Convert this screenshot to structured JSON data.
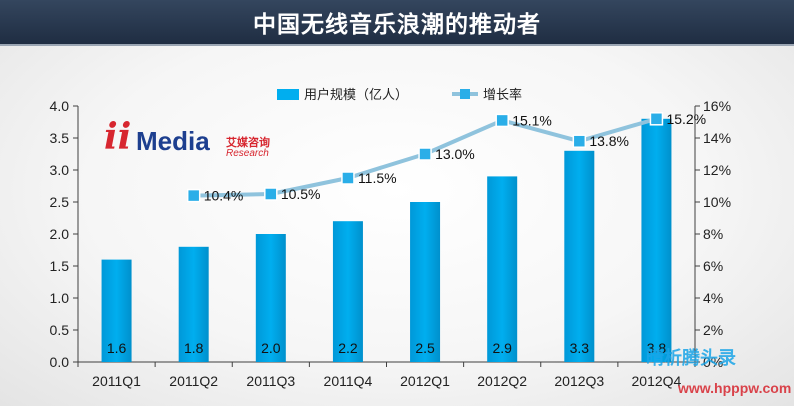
{
  "header": {
    "title": "中国无线音乐浪潮的推动者"
  },
  "logo": {
    "mark": "ii",
    "name": "Media",
    "cn": "艾媒咨询",
    "en": "Research"
  },
  "watermark": {
    "cn": "晴析腾头录",
    "en": "www.hpppw.com"
  },
  "colors": {
    "bar": "#00aeef",
    "line": "#8fc3dd",
    "marker": "#2aaee8",
    "title_bg": "#2a3a52"
  },
  "chart_data": {
    "type": "bar+line",
    "categories": [
      "2011Q1",
      "2011Q2",
      "2011Q3",
      "2011Q4",
      "2012Q1",
      "2012Q2",
      "2012Q3",
      "2012Q4"
    ],
    "series": [
      {
        "name": "用户规模（亿人）",
        "type": "bar",
        "axis": "left",
        "values": [
          1.6,
          1.8,
          2.0,
          2.2,
          2.5,
          2.9,
          3.3,
          3.8
        ],
        "labels": [
          "1.6",
          "1.8",
          "2.0",
          "2.2",
          "2.5",
          "2.9",
          "3.3",
          "3.8"
        ]
      },
      {
        "name": "增长率",
        "type": "line",
        "axis": "right",
        "values": [
          null,
          10.4,
          10.5,
          11.5,
          13.0,
          15.1,
          13.8,
          15.2
        ],
        "labels": [
          "",
          "10.4%",
          "10.5%",
          "11.5%",
          "13.0%",
          "15.1%",
          "13.8%",
          "15.2%"
        ]
      }
    ],
    "y_left": {
      "min": 0,
      "max": 4.0,
      "ticks": [
        "0.0",
        "0.5",
        "1.0",
        "1.5",
        "2.0",
        "2.5",
        "3.0",
        "3.5",
        "4.0"
      ]
    },
    "y_right": {
      "min": 0,
      "max": 16,
      "ticks": [
        "0%",
        "2%",
        "4%",
        "6%",
        "8%",
        "10%",
        "12%",
        "14%",
        "16%"
      ]
    },
    "legend_position": "top-center",
    "grid": false
  }
}
